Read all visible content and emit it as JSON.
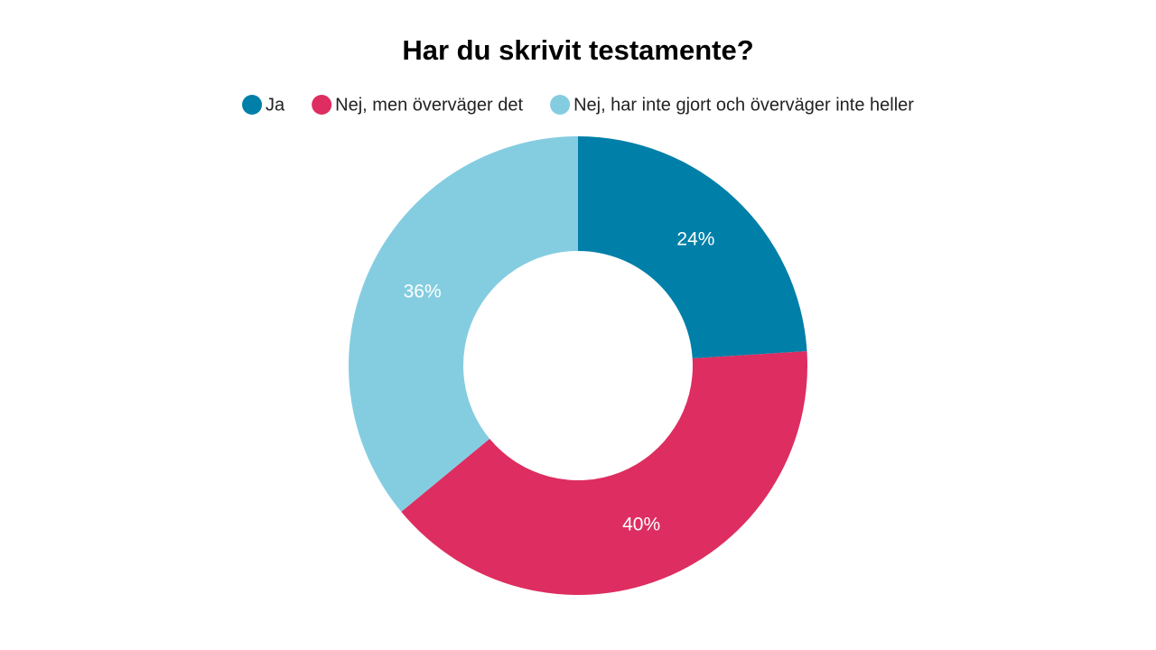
{
  "chart_data": {
    "type": "donut",
    "title": "Har du skrivit testamente?",
    "categories": [
      "Ja",
      "Nej, men överväger det",
      "Nej, har inte gjort och överväger inte heller"
    ],
    "values": [
      24,
      40,
      36
    ],
    "value_labels": [
      "24%",
      "40%",
      "36%"
    ],
    "colors": [
      "#007fa8",
      "#de2d60",
      "#84cde1"
    ],
    "legend": "top"
  }
}
